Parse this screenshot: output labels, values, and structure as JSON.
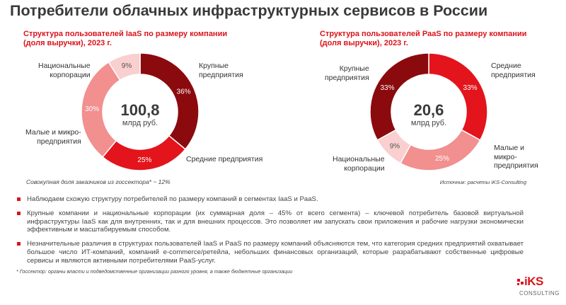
{
  "page": {
    "title": "Потребители облачных инфраструктурных сервисов в России"
  },
  "chart_data": [
    {
      "type": "pie",
      "subtitle_lines": [
        "Структура пользователей IaaS по размеру компании",
        "(доля выручки), 2023 г."
      ],
      "center_value": "100,8",
      "center_unit": "млрд руб.",
      "slices": [
        {
          "label_lines": [
            "Крупные",
            "предприятия"
          ],
          "value": 36,
          "value_label": "36%",
          "color": "#8b0a0e"
        },
        {
          "label_lines": [
            "Средние предприятия"
          ],
          "value": 25,
          "value_label": "25%",
          "color": "#e3141c"
        },
        {
          "label_lines": [
            "Малые и микро-",
            "предприятия"
          ],
          "value": 30,
          "value_label": "30%",
          "color": "#f28f8f"
        },
        {
          "label_lines": [
            "Национальные",
            "корпорации"
          ],
          "value": 9,
          "value_label": "9%",
          "color": "#f9cfcf"
        }
      ]
    },
    {
      "type": "pie",
      "subtitle_lines": [
        "Структура пользователей PaaS по размеру компании",
        "(доля выручки), 2023 г."
      ],
      "center_value": "20,6",
      "center_unit": "млрд руб.",
      "slices": [
        {
          "label_lines": [
            "Средние",
            "предприятия"
          ],
          "value": 33,
          "value_label": "33%",
          "color": "#e3141c"
        },
        {
          "label_lines": [
            "Малые и",
            "микро-",
            "предприятия"
          ],
          "value": 25,
          "value_label": "25%",
          "color": "#f28f8f"
        },
        {
          "label_lines": [
            "Национальные",
            "корпорации"
          ],
          "value": 9,
          "value_label": "9%",
          "color": "#f9cfcf"
        },
        {
          "label_lines": [
            "Крупные",
            "предприятия"
          ],
          "value": 33,
          "value_label": "33%",
          "color": "#8b0a0e"
        }
      ]
    }
  ],
  "notes": {
    "gos_share": "Совокупная доля заказчиков из госсектора* ~ 12%",
    "source": "Источник: расчеты iKS-Consulting",
    "footnote": "* Госсектор: органы власти и подведомственные организации разного уровня, а также бюджетные организации"
  },
  "bullets": [
    "Наблюдаем схожую структуру потребителей по размеру компаний в сегментах IaaS и PaaS.",
    "Крупные компании и национальные корпорации (их суммарная доля – 45% от всего сегмента) – ключевой потребитель базовой виртуальной инфраструктуры IaaS как для внутренних, так и для внешних процессов. Это позволяет им запускать свои приложения и рабочие нагрузки экономически эффективным и масштабируемым способом.",
    "Незначительные различия в структурах пользователей IaaS и PaaS по размеру компаний объясняются тем, что категория средних предприятий охватывает большое число ИТ-компаний, компаний e-commerce/ретейла, небольших финансовых организаций, которые разрабатывают собственные цифровые сервисы и являются активными потребителями PaaS-услуг."
  ],
  "logo": {
    "main": "iKS",
    "sub": "CONSULTING"
  },
  "colors": {
    "accent": "#d9141b"
  }
}
